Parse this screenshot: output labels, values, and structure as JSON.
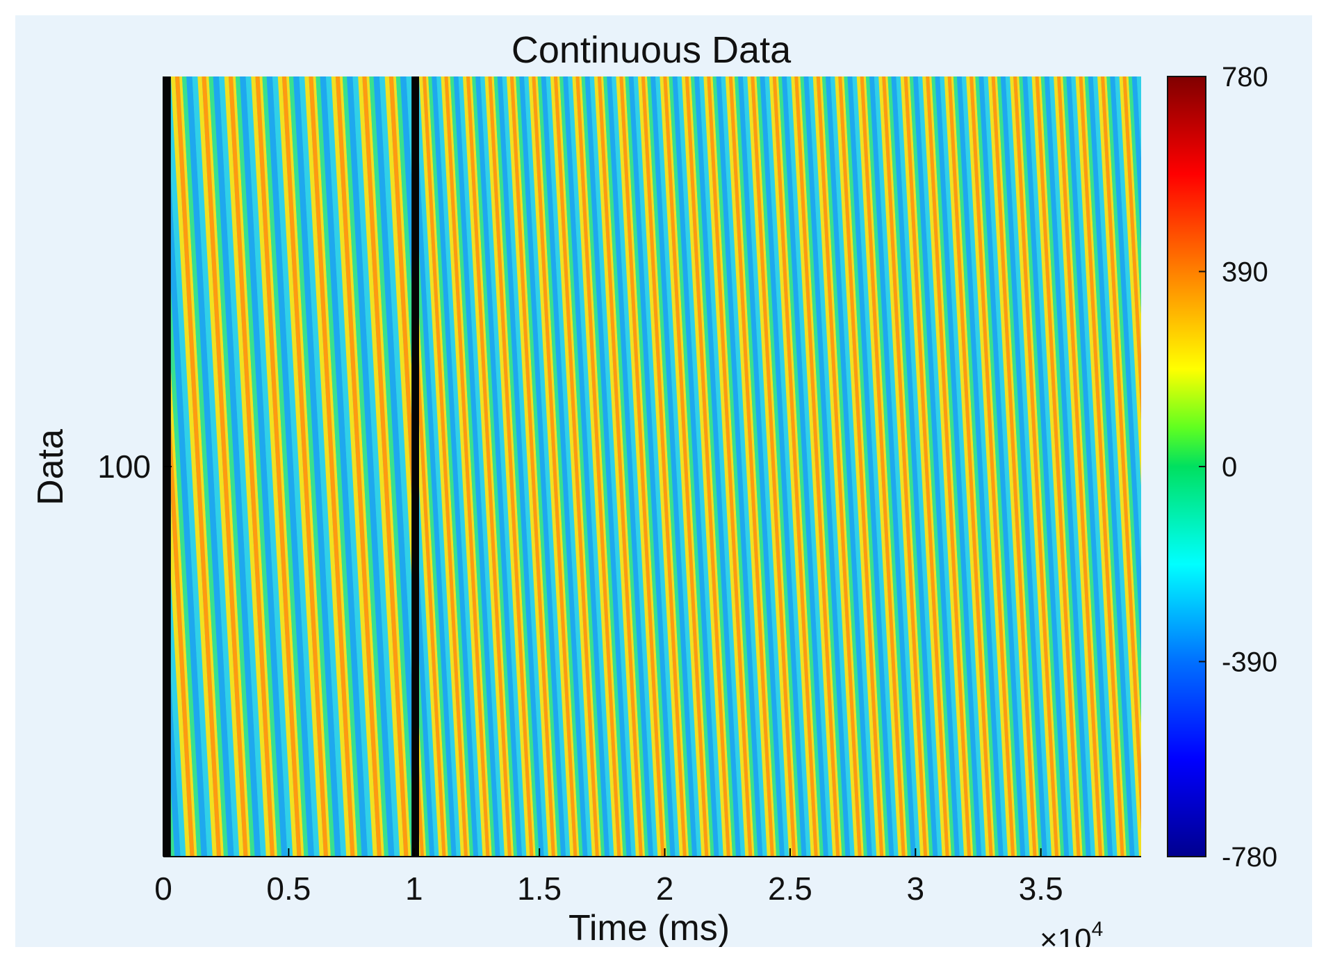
{
  "chart_data": {
    "type": "heatmap",
    "title": "Continuous Data",
    "xlabel": "Time (ms)",
    "ylabel": "Data",
    "x_exponent_label": "×10",
    "x_exponent_power": "4",
    "xlim": [
      0,
      3.9
    ],
    "x_ticks": [
      0,
      0.5,
      1,
      1.5,
      2,
      2.5,
      3,
      3.5
    ],
    "x_tick_labels": [
      "0",
      "0.5",
      "1",
      "1.5",
      "2",
      "2.5",
      "3",
      "3.5"
    ],
    "y_ticks": [
      100
    ],
    "y_tick_labels": [
      "100"
    ],
    "ylim": [
      0,
      200
    ],
    "colorbar": {
      "colormap": "jet",
      "clim": [
        -780,
        780
      ],
      "ticks": [
        780,
        390,
        0,
        -390,
        -780
      ],
      "tick_labels": [
        "780",
        "390",
        "0",
        "-390",
        "-780"
      ]
    },
    "gaps": [
      {
        "x_start": 0,
        "x_end": 0.03
      },
      {
        "x_start": 0.99,
        "x_end": 1.02
      }
    ],
    "pattern": {
      "description_values": "periodic diagonal stripes",
      "stripes_per_segment_1": 9,
      "stripes_per_segment_2": 33
    }
  }
}
